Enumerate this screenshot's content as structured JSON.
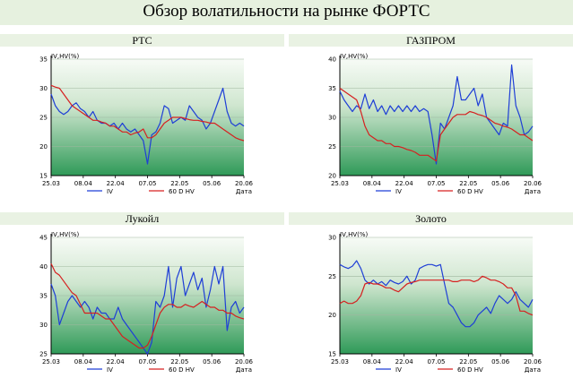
{
  "title": "Обзор волатильности на рынке ФОРТС",
  "chart_data": [
    {
      "type": "line",
      "title": "РТС",
      "ylabel": "IV,HV(%)",
      "xlabel": "Дата",
      "ylim": [
        15,
        35
      ],
      "yticks": [
        15,
        20,
        25,
        30,
        35
      ],
      "xticks": [
        "25.03",
        "08.04",
        "22.04",
        "07.05",
        "22.05",
        "05.06",
        "20.06"
      ],
      "legend": [
        "IV",
        "60 D HV"
      ],
      "series": [
        {
          "name": "IV",
          "color": "#1f3fd6",
          "values": [
            29,
            27,
            26,
            25.5,
            26,
            27,
            27.5,
            26.5,
            26,
            25,
            26,
            24.5,
            24,
            24,
            23.5,
            24,
            23,
            24,
            23,
            22.5,
            23,
            22,
            21,
            17,
            22,
            22.5,
            24,
            27,
            26.5,
            24,
            24.5,
            25,
            24.5,
            27,
            26,
            25,
            24.5,
            23,
            24,
            26,
            28,
            30,
            26,
            24,
            23.5,
            24,
            23.5
          ]
        },
        {
          "name": "60 D HV",
          "color": "#d62020",
          "values": [
            30.5,
            30.2,
            30,
            29,
            28,
            27,
            26.5,
            26,
            25.5,
            25,
            24.5,
            24.5,
            24.2,
            24,
            23.5,
            23.5,
            23,
            22.5,
            22.5,
            22,
            22.3,
            22.5,
            23,
            21.5,
            21.5,
            22,
            23,
            24,
            24.5,
            25,
            25,
            25,
            24.8,
            24.6,
            24.5,
            24.5,
            24.3,
            24.2,
            24,
            24,
            23.5,
            23,
            22.5,
            22,
            21.5,
            21.2,
            21
          ]
        }
      ]
    },
    {
      "type": "line",
      "title": "ГАЗПРОМ",
      "ylabel": "IV,HV(%)",
      "xlabel": "Дата",
      "ylim": [
        20,
        40
      ],
      "yticks": [
        20,
        25,
        30,
        35,
        40
      ],
      "xticks": [
        "25.03",
        "08.04",
        "22.04",
        "07.05",
        "22.05",
        "05.06",
        "20.06"
      ],
      "legend": [
        "IV",
        "60 D HV"
      ],
      "series": [
        {
          "name": "IV",
          "color": "#1f3fd6",
          "values": [
            34.5,
            33,
            32,
            31,
            32,
            31.5,
            34,
            31.5,
            33,
            31,
            32,
            30.5,
            32,
            31,
            32,
            31,
            32,
            31,
            32,
            31,
            31.5,
            31,
            27,
            22,
            29,
            28,
            30,
            32,
            37,
            33,
            33,
            34,
            35,
            32,
            34,
            30,
            29,
            28,
            27,
            29,
            28.5,
            39,
            32,
            30,
            27,
            27.5,
            28.5
          ]
        },
        {
          "name": "60 D HV",
          "color": "#d62020",
          "values": [
            35,
            34.5,
            34,
            33.5,
            33,
            31,
            28.5,
            27,
            26.5,
            26,
            26,
            25.5,
            25.5,
            25,
            25,
            24.8,
            24.5,
            24.3,
            24,
            23.5,
            23.5,
            23.5,
            23,
            22.5,
            27,
            28,
            29,
            30,
            30.5,
            30.5,
            30.5,
            31,
            30.8,
            30.5,
            30.3,
            30,
            29.5,
            29,
            28.8,
            28.5,
            28.3,
            28,
            27.5,
            27,
            27,
            26.5,
            26
          ]
        }
      ]
    },
    {
      "type": "line",
      "title": "Лукойл",
      "ylabel": "IV,HV(%)",
      "xlabel": "Дата",
      "ylim": [
        25,
        45
      ],
      "yticks": [
        25,
        30,
        35,
        40,
        45
      ],
      "xticks": [
        "25.03",
        "08.04",
        "22.04",
        "07.05",
        "22.05",
        "05.06",
        "20.06"
      ],
      "legend": [
        "IV",
        "60 D HV"
      ],
      "series": [
        {
          "name": "IV",
          "color": "#1f3fd6",
          "values": [
            37,
            35,
            30,
            32,
            34,
            35,
            34,
            33,
            34,
            33,
            31,
            33,
            32,
            32,
            31,
            31,
            33,
            31,
            30,
            29,
            28,
            27,
            26,
            25,
            27,
            34,
            33,
            35,
            40,
            33,
            38,
            40,
            35,
            37,
            39,
            36,
            38,
            33,
            36,
            40,
            37,
            40,
            29,
            33,
            34,
            32,
            33
          ]
        },
        {
          "name": "60 D HV",
          "color": "#d62020",
          "values": [
            40.5,
            39,
            38.5,
            37.5,
            36.5,
            35.5,
            35,
            33.5,
            32,
            32,
            32,
            32,
            31.5,
            31,
            31,
            30,
            29,
            28,
            27.5,
            27,
            26.5,
            26,
            26,
            26.5,
            28,
            30,
            32,
            33,
            33.5,
            33.5,
            33,
            33,
            33.5,
            33.2,
            33,
            33.5,
            34,
            33.5,
            33,
            33,
            32.5,
            32.5,
            32,
            32,
            31.5,
            31.2,
            31
          ]
        }
      ]
    },
    {
      "type": "line",
      "title": "Золото",
      "ylabel": "IV,HV(%)",
      "xlabel": "Дата",
      "ylim": [
        15,
        30
      ],
      "yticks": [
        15,
        20,
        25,
        30
      ],
      "xticks": [
        "25.03",
        "08.04",
        "22.04",
        "07.05",
        "22.05",
        "05.06",
        "20.06"
      ],
      "legend": [
        "IV",
        "60 D HV"
      ],
      "series": [
        {
          "name": "IV",
          "color": "#1f3fd6",
          "values": [
            26.5,
            26.2,
            26,
            26.3,
            27,
            26,
            24.5,
            24,
            24.5,
            24,
            24.3,
            23.8,
            24.5,
            24.2,
            24,
            24.3,
            25,
            24,
            24.5,
            26,
            26.3,
            26.5,
            26.5,
            26.3,
            26.5,
            24,
            21.5,
            21,
            20,
            19,
            18.5,
            18.5,
            19,
            20,
            20.5,
            21,
            20.2,
            21.5,
            22.5,
            22,
            21.5,
            22,
            23,
            22,
            21.5,
            21,
            22
          ]
        },
        {
          "name": "60 D HV",
          "color": "#d62020",
          "values": [
            21.5,
            21.8,
            21.5,
            21.5,
            21.8,
            22.5,
            24,
            24.2,
            24,
            24,
            23.8,
            23.5,
            23.5,
            23.2,
            23,
            23.5,
            24,
            24.2,
            24.3,
            24.5,
            24.5,
            24.5,
            24.5,
            24.5,
            24.5,
            24.5,
            24.5,
            24.3,
            24.3,
            24.5,
            24.5,
            24.5,
            24.3,
            24.5,
            25,
            24.8,
            24.5,
            24.5,
            24.3,
            24,
            23.5,
            23.5,
            22.5,
            20.5,
            20.5,
            20.2,
            20
          ]
        }
      ]
    }
  ]
}
